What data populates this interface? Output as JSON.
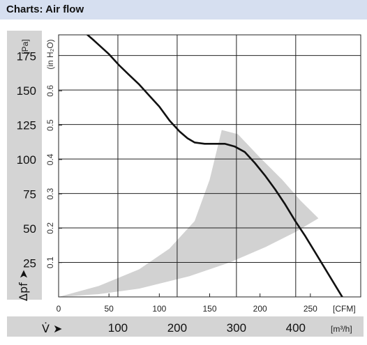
{
  "header": {
    "title": "Charts: Air flow"
  },
  "chart_data": {
    "type": "line",
    "title": "",
    "colors": {
      "curve": "#111111",
      "region": "#d2d2d2",
      "grid": "#222222",
      "band": "#d4d4d4"
    },
    "y_axis": {
      "unit": "[Pa]",
      "label": "Δpf ➤",
      "ticks": [
        25,
        50,
        75,
        100,
        125,
        150,
        175
      ],
      "range": [
        0,
        190
      ]
    },
    "y_axis_secondary": {
      "unit": "(in H₂O)",
      "ticks": [
        "0.1",
        "0.2",
        "0.3",
        "0.4",
        "0.5",
        "0.6"
      ],
      "values": [
        0.1,
        0.2,
        0.3,
        0.4,
        0.5,
        0.6
      ]
    },
    "x_axis": {
      "unit": "[CFM]",
      "ticks": [
        0,
        50,
        100,
        150,
        200,
        250
      ],
      "range": [
        0,
        300
      ]
    },
    "x_axis_secondary": {
      "label": "V̇ ➤",
      "unit": "[m³/h]",
      "ticks": [
        "100",
        "200",
        "300",
        "400"
      ],
      "values": [
        100,
        200,
        300,
        400
      ]
    },
    "grid": true,
    "series": [
      {
        "x": [
          24,
          35,
          50,
          60,
          70,
          80,
          90,
          100,
          110,
          120,
          128,
          135,
          145,
          155,
          165,
          175,
          185,
          195,
          205,
          215,
          225,
          235,
          245,
          255,
          265,
          275,
          285
        ],
        "y": [
          193,
          186,
          176,
          168,
          161,
          154,
          146,
          138,
          128,
          120,
          115,
          112,
          111,
          111,
          111,
          109,
          105,
          97,
          88,
          78,
          67,
          55,
          44,
          32,
          20,
          8,
          -4
        ]
      }
    ],
    "operating_region": {
      "upper": [
        [
          0,
          0
        ],
        [
          40,
          8
        ],
        [
          80,
          20
        ],
        [
          110,
          35
        ],
        [
          135,
          55
        ],
        [
          150,
          85
        ],
        [
          162,
          121
        ],
        [
          178,
          118
        ],
        [
          200,
          101
        ],
        [
          222,
          85
        ],
        [
          240,
          70
        ],
        [
          258,
          57
        ]
      ],
      "lower": [
        [
          258,
          57
        ],
        [
          235,
          47
        ],
        [
          205,
          36
        ],
        [
          170,
          25
        ],
        [
          130,
          15
        ],
        [
          80,
          6
        ],
        [
          40,
          2
        ],
        [
          0,
          0
        ]
      ]
    }
  }
}
